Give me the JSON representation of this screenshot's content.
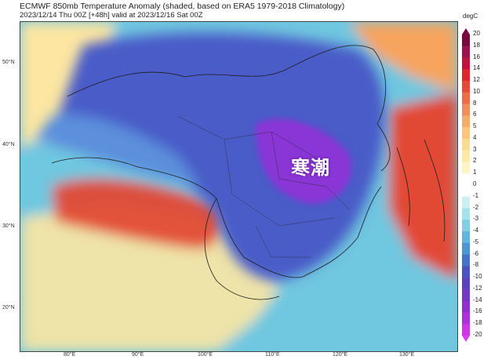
{
  "header": {
    "title": "ECMWF 850mb Temperature Anomaly (shaded, based on ERA5 1979-2018 Climatology)",
    "subtitle": "2023/12/14 Thu 00Z [+48h] valid at 2023/12/16 Sat 00Z"
  },
  "overlay_text": "寒潮",
  "axes": {
    "lat_labels": [
      "50°N",
      "40°N",
      "30°N",
      "20°N"
    ],
    "lon_labels": [
      "80°E",
      "90°E",
      "100°E",
      "110°E",
      "120°E",
      "130°E"
    ]
  },
  "colorbar": {
    "unit": "degC",
    "ticks": [
      "20",
      "18",
      "16",
      "14",
      "12",
      "10",
      "8",
      "6",
      "5",
      "4",
      "3",
      "2",
      "1",
      "0",
      "-1",
      "-2",
      "-3",
      "-4",
      "-5",
      "-6",
      "-8",
      "-10",
      "-12",
      "-14",
      "-16",
      "-18",
      "-20"
    ],
    "colors": [
      "#7a0a3e",
      "#a0104e",
      "#c0133e",
      "#d9282c",
      "#e8483a",
      "#f06a45",
      "#f58d56",
      "#f8ad66",
      "#fbc77a",
      "#fcdc94",
      "#fdeaa9",
      "#fef5c7",
      "#ffffff",
      "#ffffff",
      "#cdeff4",
      "#a6e2ec",
      "#7fd0e4",
      "#5cb8dd",
      "#4a96d6",
      "#4672cc",
      "#4a55c3",
      "#5a40c2",
      "#7436c9",
      "#9030d4",
      "#b02fe0",
      "#d035ea"
    ],
    "end_colors": {
      "top": "#7a0a3e",
      "bottom": "#e03af0"
    }
  },
  "map": {
    "colors": {
      "ocean": "#6fc7e0",
      "cold_core": "#8a34d6",
      "cold": "#4a5cc8",
      "cool": "#5b8fdc",
      "near_zero": "#f4f8fb",
      "mild": "#fce6a2",
      "warm": "#f7a45e",
      "hot": "#e24a35",
      "border": "#1d1d1d"
    }
  }
}
